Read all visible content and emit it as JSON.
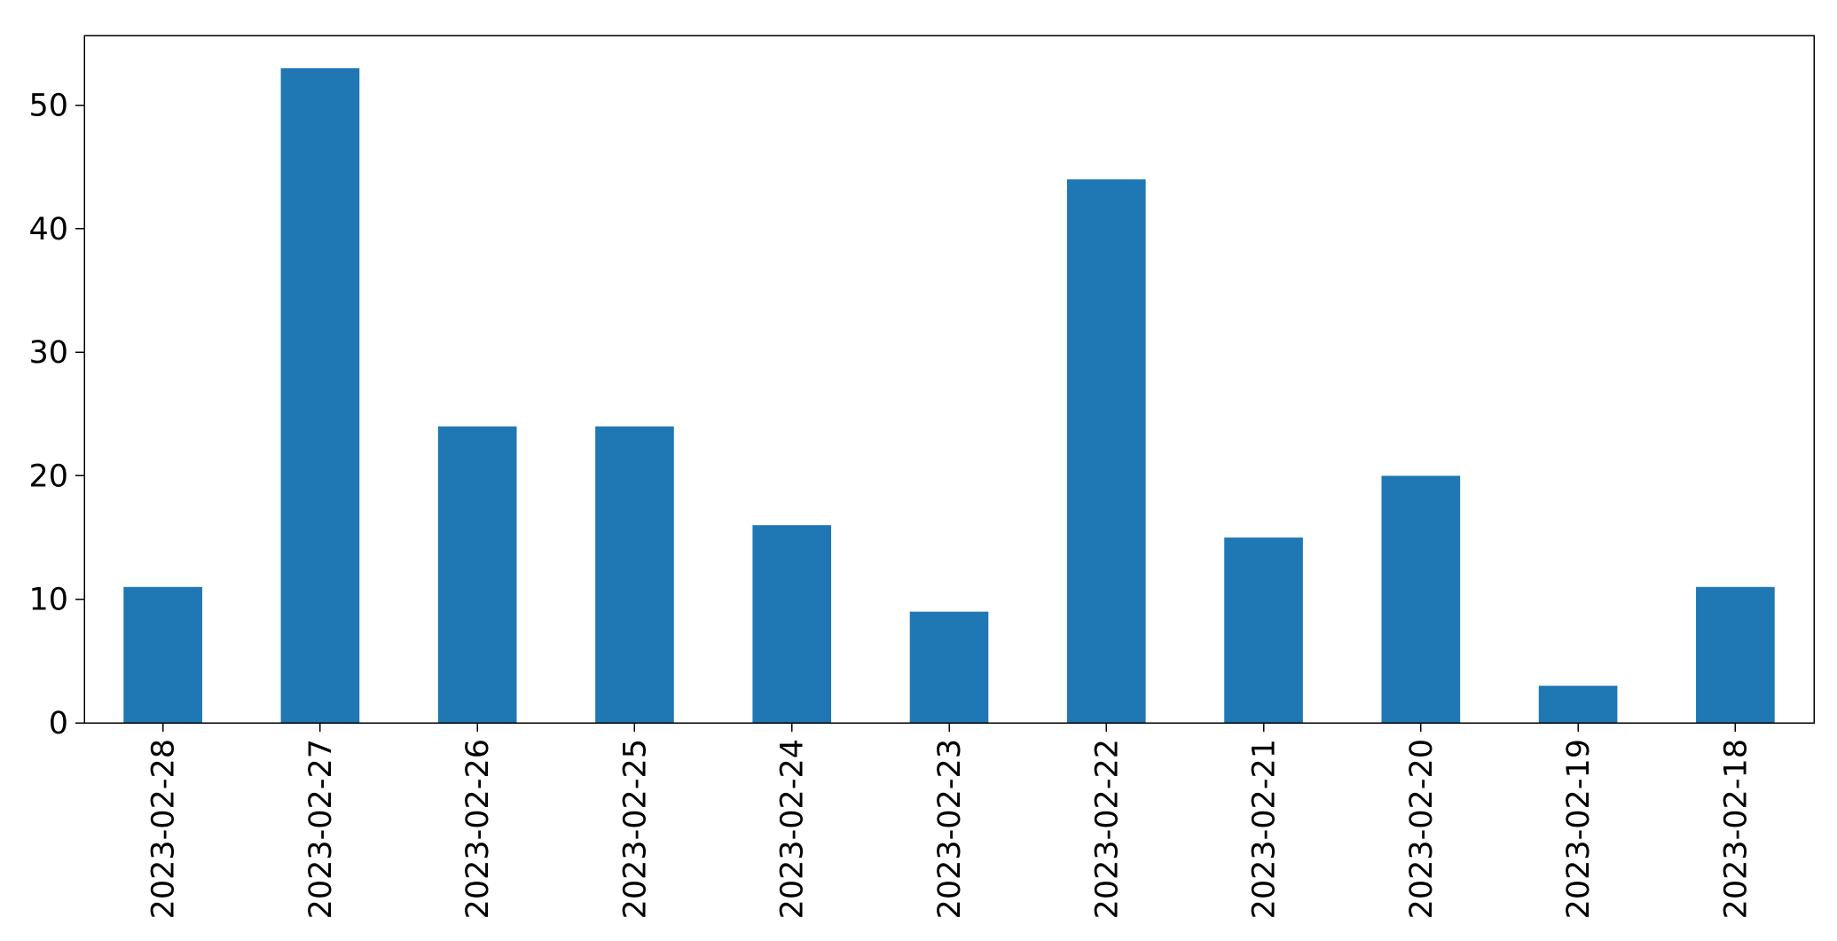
{
  "chart_data": {
    "type": "bar",
    "categories": [
      "2023-02-28",
      "2023-02-27",
      "2023-02-26",
      "2023-02-25",
      "2023-02-24",
      "2023-02-23",
      "2023-02-22",
      "2023-02-21",
      "2023-02-20",
      "2023-02-19",
      "2023-02-18"
    ],
    "values": [
      11,
      53,
      24,
      24,
      16,
      9,
      44,
      15,
      20,
      3,
      11
    ],
    "yticks": [
      0,
      10,
      20,
      30,
      40,
      50
    ],
    "ylim": [
      0,
      55.65
    ],
    "grid": false,
    "legend": "none",
    "bar_color": "#1f77b4"
  }
}
